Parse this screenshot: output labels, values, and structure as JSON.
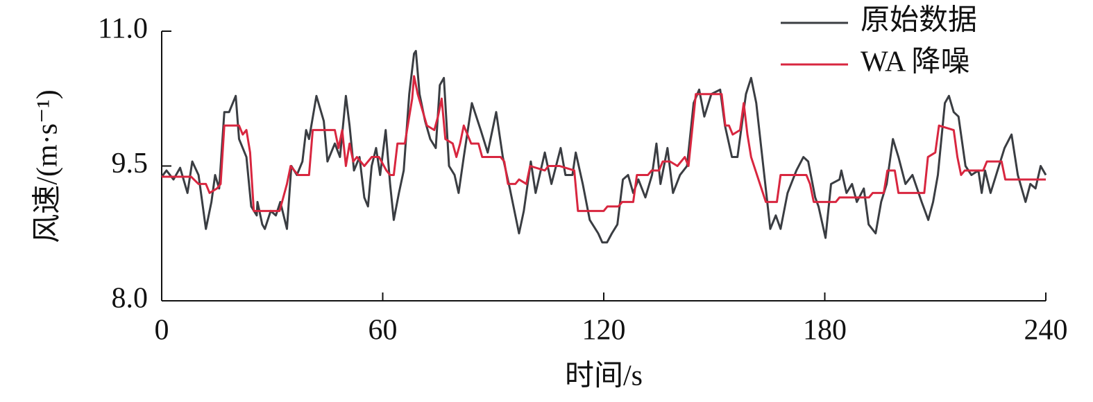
{
  "chart_data": {
    "type": "line",
    "xlabel": "时间/s",
    "ylabel": "风速/(m·s⁻¹)",
    "xlim": [
      0,
      240
    ],
    "xticks": [
      0,
      60,
      120,
      180,
      240
    ],
    "ylim": [
      8,
      11
    ],
    "yticks": [
      {
        "value": 8,
        "label": "8.0"
      },
      9.5,
      {
        "value": 11,
        "label": "11.0"
      }
    ],
    "legend": "upper right",
    "series": [
      {
        "name": "原始数据",
        "color": "#3a3d42",
        "x": [
          0,
          1.3,
          3.2,
          5,
          7,
          8.3,
          10,
          12,
          13.5,
          14.5,
          15.6,
          17,
          18.3,
          20.1,
          21,
          23,
          24.3,
          25.8,
          26,
          27.3,
          28,
          29.6,
          31,
          32.2,
          34,
          35.2,
          36.7,
          38.2,
          39.2,
          40,
          42,
          44,
          45,
          47,
          48.4,
          50,
          51,
          52.2,
          53.7,
          55,
          56,
          57,
          58.2,
          59.3,
          60.8,
          62,
          63,
          64.4,
          65.7,
          67.2,
          68.5,
          69,
          70,
          71.5,
          72.9,
          74.4,
          75.5,
          76.6,
          78,
          79.5,
          80.6,
          82,
          84.2,
          85,
          86.6,
          88.5,
          90.8,
          92.6,
          94.5,
          97,
          98.3,
          100.2,
          101.5,
          104,
          105.8,
          108.3,
          109.6,
          111.5,
          112.4,
          114.3,
          116.2,
          118.5,
          119.6,
          120.9,
          122.2,
          123.7,
          125.2,
          126.6,
          128,
          129.4,
          131.3,
          133.1,
          134.3,
          135.4,
          137.3,
          138.8,
          140.7,
          142.6,
          144.4,
          145.9,
          147.3,
          149.2,
          151.6,
          152.9,
          154.8,
          156.3,
          158.6,
          160,
          161.4,
          163.3,
          165.2,
          166.7,
          168,
          169.9,
          172.3,
          174.2,
          175.5,
          177.4,
          178.3,
          180.2,
          181.7,
          184,
          184.5,
          185.9,
          187.4,
          188.7,
          190.6,
          191.9,
          193.8,
          195.3,
          196.8,
          198.5,
          200,
          201.9,
          203.8,
          206.3,
          208.1,
          209.4,
          210.7,
          212.6,
          213.7,
          215,
          216.3,
          218.2,
          219.8,
          221.7,
          222.6,
          223.5,
          225,
          226.9,
          228.8,
          230.7,
          232.4,
          234.5,
          235.8,
          237.2,
          238.6,
          240
        ],
        "values": [
          9.38,
          9.45,
          9.35,
          9.48,
          9.2,
          9.55,
          9.4,
          8.8,
          9.1,
          9.4,
          9.25,
          10.1,
          10.1,
          10.28,
          9.8,
          9.6,
          9.05,
          8.95,
          9.1,
          8.85,
          8.8,
          9.0,
          8.95,
          9.1,
          8.8,
          9.5,
          9.4,
          9.55,
          9.9,
          9.8,
          10.28,
          10.0,
          9.55,
          9.75,
          9.6,
          10.28,
          9.95,
          9.45,
          9.6,
          9.15,
          9.05,
          9.5,
          9.7,
          9.4,
          9.9,
          9.3,
          8.9,
          9.2,
          9.45,
          10.3,
          10.75,
          10.78,
          10.3,
          10.0,
          9.8,
          9.7,
          10.4,
          10.48,
          9.5,
          9.4,
          9.2,
          9.6,
          10.2,
          10.1,
          9.9,
          9.65,
          10.1,
          9.6,
          9.25,
          8.75,
          9.0,
          9.55,
          9.2,
          9.65,
          9.3,
          9.7,
          9.4,
          9.4,
          9.65,
          9.3,
          8.9,
          8.75,
          8.65,
          8.65,
          8.75,
          8.85,
          9.35,
          9.4,
          9.2,
          9.35,
          9.15,
          9.4,
          9.75,
          9.3,
          9.7,
          9.2,
          9.4,
          9.5,
          10.2,
          10.35,
          10.05,
          10.3,
          10.35,
          9.95,
          9.6,
          9.6,
          10.3,
          10.48,
          10.2,
          9.5,
          8.8,
          8.95,
          8.8,
          9.2,
          9.45,
          9.6,
          9.55,
          9.15,
          9.05,
          8.7,
          9.3,
          9.35,
          9.45,
          9.2,
          9.3,
          9.1,
          9.25,
          8.85,
          8.75,
          9.1,
          9.3,
          9.8,
          9.6,
          9.3,
          9.4,
          9.1,
          8.9,
          9.1,
          9.4,
          10.2,
          10.28,
          10.1,
          10.05,
          9.5,
          9.4,
          9.45,
          9.2,
          9.45,
          9.2,
          9.45,
          9.7,
          9.85,
          9.4,
          9.1,
          9.3,
          9.25,
          9.5,
          9.4
        ]
      },
      {
        "name": "WA 降噪",
        "color": "#d8263f",
        "x": [
          0,
          8,
          10,
          12,
          13,
          15,
          16,
          17,
          21,
          22,
          23,
          24,
          25,
          32,
          34,
          35,
          36,
          37,
          40,
          41,
          47,
          48,
          49,
          50,
          51,
          52,
          53,
          55,
          57,
          59,
          61,
          62,
          63,
          64,
          66,
          68,
          68.5,
          69.5,
          72,
          74,
          75,
          76,
          77,
          79,
          80,
          81,
          82,
          84,
          86,
          87,
          92,
          93,
          94,
          96,
          97,
          99,
          100,
          104,
          105,
          108,
          112,
          113,
          120,
          121,
          124,
          125,
          128,
          129,
          132,
          133,
          135,
          136,
          138,
          140,
          142,
          143,
          145,
          152,
          153,
          154,
          155,
          157,
          158,
          159,
          160,
          164,
          167,
          168,
          174,
          175,
          176,
          177,
          183,
          184,
          192,
          193,
          196,
          197,
          199,
          200,
          207,
          208,
          210,
          211,
          215,
          216,
          217,
          218,
          223,
          224,
          228,
          229,
          240
        ],
        "values": [
          9.38,
          9.38,
          9.3,
          9.3,
          9.2,
          9.25,
          9.3,
          9.95,
          9.95,
          9.85,
          9.9,
          9.65,
          9.0,
          9.0,
          9.3,
          9.5,
          9.45,
          9.4,
          9.4,
          9.9,
          9.9,
          9.7,
          9.9,
          9.5,
          9.75,
          9.55,
          9.6,
          9.5,
          9.6,
          9.6,
          9.45,
          9.4,
          9.4,
          9.75,
          9.75,
          10.25,
          10.5,
          10.3,
          9.95,
          9.9,
          10.05,
          10.25,
          9.8,
          9.75,
          9.6,
          9.75,
          9.95,
          9.75,
          9.75,
          9.6,
          9.6,
          9.55,
          9.3,
          9.3,
          9.35,
          9.3,
          9.5,
          9.45,
          9.5,
          9.5,
          9.45,
          9.0,
          9.0,
          9.05,
          9.05,
          9.1,
          9.1,
          9.4,
          9.4,
          9.45,
          9.45,
          9.55,
          9.55,
          9.5,
          9.6,
          9.5,
          10.3,
          10.3,
          9.95,
          9.95,
          9.85,
          9.9,
          10.2,
          9.85,
          9.6,
          9.1,
          9.1,
          9.4,
          9.4,
          9.4,
          9.3,
          9.1,
          9.1,
          9.15,
          9.15,
          9.2,
          9.2,
          9.45,
          9.45,
          9.2,
          9.2,
          9.6,
          9.65,
          9.95,
          9.9,
          9.6,
          9.4,
          9.45,
          9.45,
          9.55,
          9.55,
          9.35,
          9.35
        ]
      }
    ]
  }
}
